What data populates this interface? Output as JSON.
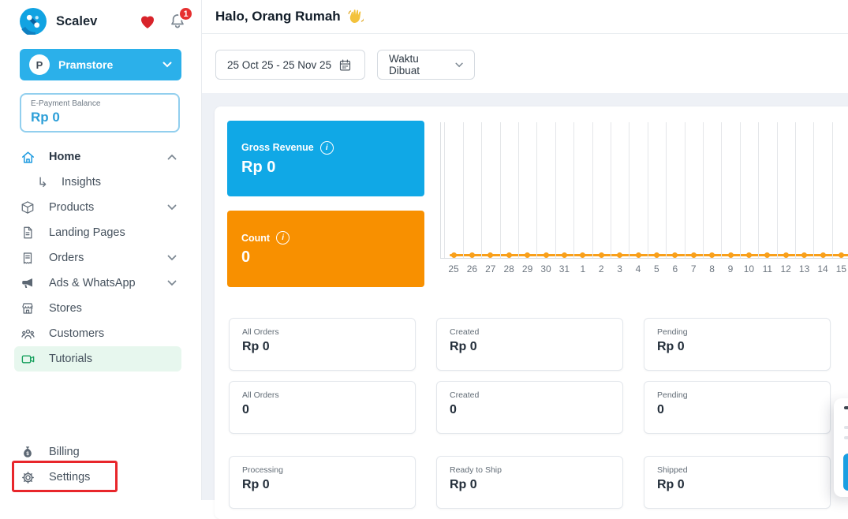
{
  "brand": {
    "name": "Scalev",
    "notification_count": "1"
  },
  "workspace": {
    "name": "Pramstore",
    "avatar_initial": "P"
  },
  "epayment": {
    "label": "E-Payment Balance",
    "value": "Rp 0"
  },
  "sidebar": {
    "nav": [
      {
        "label": "Home",
        "icon": "home-icon",
        "state": "expanded"
      },
      {
        "label": "Insights",
        "icon": "sub-arrow-icon"
      },
      {
        "label": "Products",
        "icon": "package-icon",
        "state": "collapsed"
      },
      {
        "label": "Landing Pages",
        "icon": "page-icon"
      },
      {
        "label": "Orders",
        "icon": "clipboard-icon",
        "state": "collapsed"
      },
      {
        "label": "Ads & WhatsApp",
        "icon": "megaphone-icon",
        "state": "collapsed"
      },
      {
        "label": "Stores",
        "icon": "store-icon"
      },
      {
        "label": "Customers",
        "icon": "customers-icon"
      },
      {
        "label": "Tutorials",
        "icon": "video-icon",
        "highlighted": true
      }
    ],
    "bottom": [
      {
        "label": "Billing",
        "icon": "money-bag-icon"
      },
      {
        "label": "Settings",
        "icon": "gear-icon",
        "annotated": "red-box"
      }
    ]
  },
  "header": {
    "greeting": "Halo, Orang Rumah",
    "wave_icon": "waving-hand-icon"
  },
  "toolbar": {
    "date_range": "25 Oct 25 - 25 Nov 25",
    "filter_label": "Waktu Dibuat"
  },
  "metric_cards": [
    {
      "label": "Gross Revenue",
      "value": "Rp 0",
      "color": "#10a8e6"
    },
    {
      "label": "Count",
      "value": "0",
      "color": "#f89000"
    }
  ],
  "chart_data": {
    "type": "line",
    "x": [
      "25",
      "26",
      "27",
      "28",
      "29",
      "30",
      "31",
      "1",
      "2",
      "3",
      "4",
      "5",
      "6",
      "7",
      "8",
      "9",
      "10",
      "11",
      "12",
      "13",
      "14",
      "15"
    ],
    "series": [
      {
        "name": "Count",
        "values": [
          0,
          0,
          0,
          0,
          0,
          0,
          0,
          0,
          0,
          0,
          0,
          0,
          0,
          0,
          0,
          0,
          0,
          0,
          0,
          0,
          0,
          0
        ],
        "color": "#f9a01b"
      }
    ],
    "title": "",
    "xlabel": "",
    "ylabel": "",
    "grid": "vertical",
    "legend": "none",
    "ylim": [
      0,
      1
    ]
  },
  "stat_cards": [
    {
      "label": "All Orders",
      "value": "Rp 0"
    },
    {
      "label": "Created",
      "value": "Rp 0"
    },
    {
      "label": "Pending",
      "value": "Rp 0"
    },
    {
      "label": "All Orders",
      "value": "0"
    },
    {
      "label": "Created",
      "value": "0"
    },
    {
      "label": "Pending",
      "value": "0"
    },
    {
      "label": "Processing",
      "value": "Rp 0"
    },
    {
      "label": "Ready to Ship",
      "value": "Rp 0"
    },
    {
      "label": "Shipped",
      "value": "Rp 0"
    }
  ],
  "colors": {
    "accent_blue": "#10a8e6",
    "accent_orange": "#f89000",
    "chart_line": "#f9a01b",
    "annotation_red": "#e8262b",
    "tutorials_green": "#18a05e",
    "epay_value_blue": "#2d9fd8"
  }
}
